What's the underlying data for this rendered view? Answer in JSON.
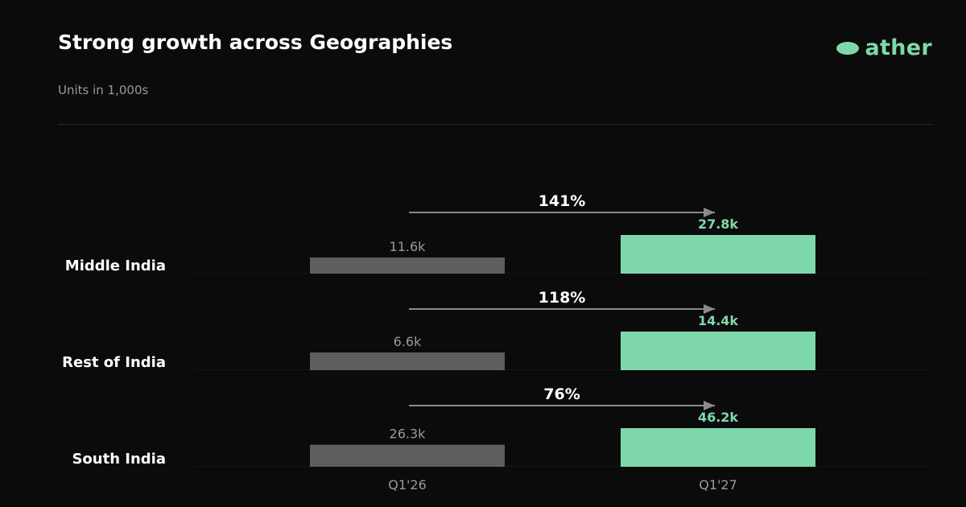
{
  "header": {
    "title": "Strong growth across Geographies",
    "subtitle": "Units in 1,000s",
    "brand": "ather"
  },
  "colors": {
    "background": "#0b0b0b",
    "accent": "#7fd8ab",
    "base_bar": "#5e5e5e",
    "arrow": "#8a8a8a"
  },
  "chart_data": {
    "type": "bar",
    "orientation": "grouped-by-row",
    "categories": [
      "Middle India",
      "Rest of India",
      "South India"
    ],
    "series": [
      {
        "name": "Q1'26",
        "values": [
          11.6,
          6.6,
          26.3
        ],
        "labels": [
          "11.6k",
          "6.6k",
          "26.3k"
        ]
      },
      {
        "name": "Q1'27",
        "values": [
          27.8,
          14.4,
          46.2
        ],
        "labels": [
          "27.8k",
          "14.4k",
          "46.2k"
        ]
      }
    ],
    "growth": [
      "141%",
      "118%",
      "76%"
    ],
    "xlabels": [
      "Q1'26",
      "Q1'27"
    ],
    "grid": false,
    "legend": "none"
  }
}
